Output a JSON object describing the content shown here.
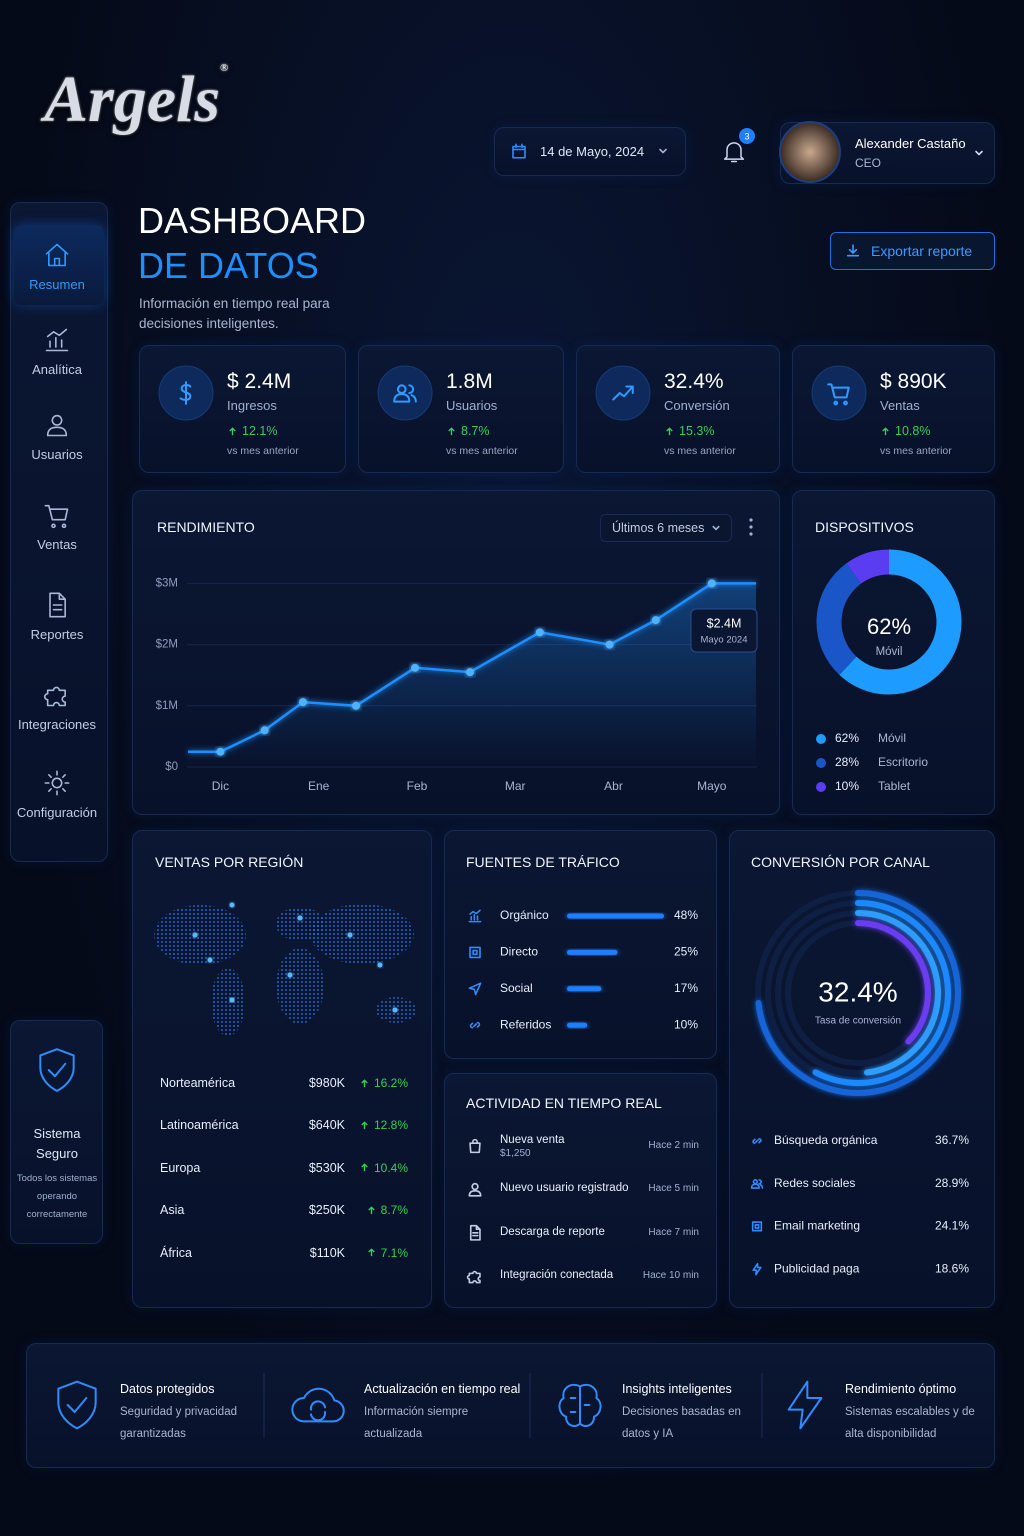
{
  "brand": "Argels",
  "brand_mark": "®",
  "header": {
    "date": "14 de Mayo, 2024",
    "notifications": 3,
    "user": {
      "name": "Alexander Castaño",
      "role": "CEO"
    }
  },
  "nav": {
    "active": 0,
    "items": [
      "Resumen",
      "Analítica",
      "Usuarios",
      "Ventas",
      "Reportes",
      "Integraciones",
      "Configuración"
    ]
  },
  "security": {
    "title": "Sistema Seguro",
    "text": "Todos los sistemas operando correctamente"
  },
  "hero": {
    "title": "DASHBOARD",
    "title_accent": "DE DATOS",
    "subtitle": "Información en tiempo real para decisiones inteligentes.",
    "export": "Exportar reporte"
  },
  "kpis": [
    {
      "value": "$ 2.4M",
      "label": "Ingresos",
      "change": "12.1%",
      "note": "vs mes anterior"
    },
    {
      "value": "1.8M",
      "label": "Usuarios",
      "change": "8.7%",
      "note": "vs mes anterior"
    },
    {
      "value": "32.4%",
      "label": "Conversión",
      "change": "15.3%",
      "note": "vs mes anterior"
    },
    {
      "value": "$ 890K",
      "label": "Ventas",
      "change": "10.8%",
      "note": "vs mes anterior"
    }
  ],
  "performance": {
    "type": "line",
    "title": "RENDIMIENTO",
    "period": "Últimos 6 meses",
    "x": [
      -0.33,
      0,
      0.45,
      0.84,
      1.38,
      1.98,
      2.54,
      3.25,
      3.96,
      4.43,
      5,
      5.45
    ],
    "values": [
      0.25,
      0.25,
      0.6,
      1.06,
      1.0,
      1.62,
      1.55,
      2.2,
      2.0,
      2.4,
      3.0,
      3.0
    ],
    "xlim": [
      -0.34,
      5.46
    ],
    "xticks": [
      {
        "value": 0,
        "label": "Dic"
      },
      {
        "value": 1,
        "label": "Ene"
      },
      {
        "value": 2,
        "label": "Feb"
      },
      {
        "value": 3,
        "label": "Mar"
      },
      {
        "value": 4,
        "label": "Abr"
      },
      {
        "value": 5,
        "label": "Mayo"
      }
    ],
    "ylim": [
      0,
      3.3
    ],
    "yticks": [
      {
        "value": 0,
        "label": "$0"
      },
      {
        "value": 1,
        "label": "$1M"
      },
      {
        "value": 2,
        "label": "$2M"
      },
      {
        "value": 3,
        "label": "$3M"
      }
    ],
    "color": "#1e8fff",
    "grid": true,
    "tooltip": {
      "value": "$2.4M",
      "label": "Mayo 2024"
    }
  },
  "devices": {
    "type": "donut",
    "title": "DISPOSITIVOS",
    "center_value": "62%",
    "center_label": "Móvil",
    "categories": [
      "Móvil",
      "Escritorio",
      "Tablet"
    ],
    "values": [
      62,
      28,
      10
    ],
    "value_labels": [
      "62%",
      "28%",
      "10%"
    ],
    "colors": [
      "#1e9bff",
      "#1a56c8",
      "#5a3df0"
    ]
  },
  "regions": {
    "title": "VENTAS POR REGIÓN",
    "rows": [
      {
        "name": "Norteamérica",
        "sales": "$980K",
        "change": "16.2%"
      },
      {
        "name": "Latinoamérica",
        "sales": "$640K",
        "change": "12.8%"
      },
      {
        "name": "Europa",
        "sales": "$530K",
        "change": "10.4%"
      },
      {
        "name": "Asia",
        "sales": "$250K",
        "change": "8.7%"
      },
      {
        "name": "África",
        "sales": "$110K",
        "change": "7.1%"
      }
    ]
  },
  "traffic": {
    "type": "bar",
    "title": "FUENTES DE TRÁFICO",
    "categories": [
      "Orgánico",
      "Directo",
      "Social",
      "Referidos"
    ],
    "values": [
      48,
      25,
      17,
      10
    ],
    "value_labels": [
      "48%",
      "25%",
      "17%",
      "10%"
    ],
    "xlim": [
      0,
      48
    ],
    "color": "#1e7fff"
  },
  "activity": {
    "title": "ACTIVIDAD EN TIEMPO REAL",
    "items": [
      {
        "title": "Nueva venta",
        "detail": "$1,250",
        "time": "Hace 2 min"
      },
      {
        "title": "Nuevo usuario registrado",
        "time": "Hace 5 min"
      },
      {
        "title": "Descarga de reporte",
        "time": "Hace 7 min"
      },
      {
        "title": "Integración conectada",
        "time": "Hace 10 min"
      }
    ]
  },
  "conversion": {
    "type": "radial",
    "title": "CONVERSIÓN POR CANAL",
    "center_value": "32.4%",
    "center_label": "Tasa de conversión",
    "categories": [
      "Búsqueda orgánica",
      "Redes sociales",
      "Email marketing",
      "Publicidad paga"
    ],
    "values": [
      36.7,
      28.9,
      24.1,
      18.6
    ],
    "value_labels": [
      "36.7%",
      "28.9%",
      "24.1%",
      "18.6%"
    ],
    "rlim": [
      0,
      50
    ],
    "colors": [
      "#1565d8",
      "#1e88ff",
      "#2f9dff",
      "#6a3cf0"
    ]
  },
  "features": [
    {
      "title": "Datos protegidos",
      "text": "Seguridad y privacidad garantizadas"
    },
    {
      "title": "Actualización en tiempo real",
      "text": "Información siempre actualizada"
    },
    {
      "title": "Insights inteligentes",
      "text": "Decisiones basadas en datos y IA"
    },
    {
      "title": "Rendimiento óptimo",
      "text": "Sistemas escalables y de alta disponibilidad"
    }
  ]
}
